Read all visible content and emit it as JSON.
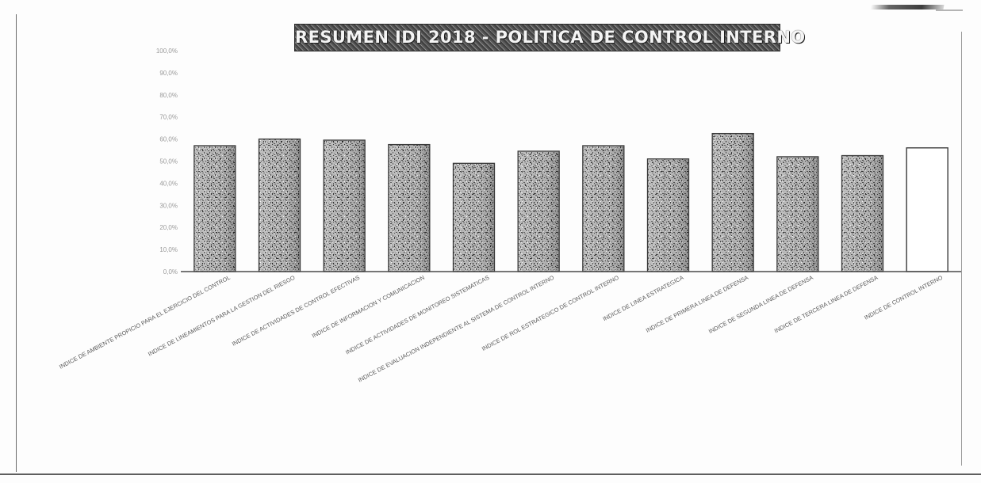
{
  "chart_data": {
    "type": "bar",
    "title": "RESUMEN IDI 2018 - POLITICA DE CONTROL INTERNO",
    "xlabel": "",
    "ylabel": "",
    "ylim": [
      0,
      100
    ],
    "yticks": [
      "0,0%",
      "10,0%",
      "20,0%",
      "30,0%",
      "40,0%",
      "50,0%",
      "60,0%",
      "70,0%",
      "80,0%",
      "90,0%",
      "100,0%"
    ],
    "categories": [
      "INDICE DE AMBIENTE PROPICIO PARA EL EJERCICIO DEL CONTROL",
      "INDICE DE LINEAMIENTOS PARA LA GESTION DEL RIESGO",
      "INDICE DE ACTIVIDADES DE CONTROL EFECTIVAS",
      "INDICE DE INFORMACION Y COMUNICACION",
      "INDICE DE ACTIVIDADES DE MONITOREO SISTEMATICAS",
      "INDICE DE EVALUACION INDEPENDIENTE AL SISTEMA DE CONTROL INTERNO",
      "INDICE DE ROL ESTRATEGICO DE CONTROL INTERNO",
      "INDICE DE LINEA ESTRATEGICA",
      "INDICE DE PRIMERA LINEA DE DEFENSA",
      "INDICE DE SEGUNDA LINEA DE DEFENSA",
      "INDICE DE TERCERA LINEA DE DEFENSA",
      "INDICE DE CONTROL INTERNO"
    ],
    "values": [
      57.0,
      60.0,
      59.5,
      57.5,
      49.0,
      54.5,
      57.0,
      51.0,
      62.5,
      52.0,
      52.5,
      56.0
    ],
    "grid": false,
    "legend": "none",
    "colors": {
      "bar_fill": "#a9a9a9",
      "bar_dark": "#5a5a5a",
      "bar_edge": "#3a3a3a",
      "last_bar_fill": "#ffffff",
      "axis": "#4a4a4a",
      "tick_text": "#9a9a9a",
      "category_text": "#5a5a5a"
    }
  }
}
